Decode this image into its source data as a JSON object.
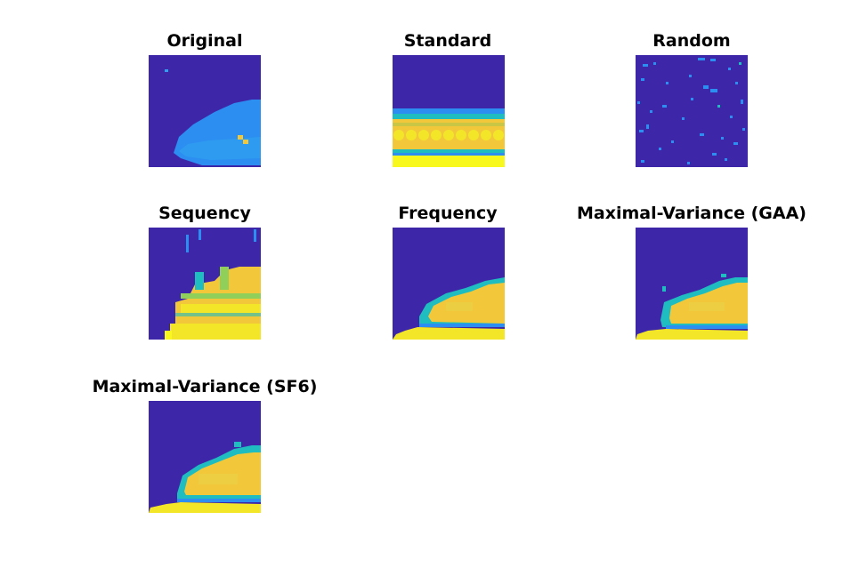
{
  "colors": {
    "background": "#3e26a8",
    "blue": "#2c8ef0",
    "light_blue": "#2f9ff0",
    "teal": "#1fbcc0",
    "green": "#8fcf5a",
    "yellow_orange": "#f2c83a",
    "yellow": "#f3e629",
    "bright_yellow": "#f9f81e"
  },
  "panels": [
    {
      "id": "original",
      "title": "Original"
    },
    {
      "id": "standard",
      "title": "Standard"
    },
    {
      "id": "random",
      "title": "Random"
    },
    {
      "id": "sequency",
      "title": "Sequency"
    },
    {
      "id": "frequency",
      "title": "Frequency"
    },
    {
      "id": "gaa",
      "title": "Maximal-Variance (GAA)"
    },
    {
      "id": "sf6",
      "title": "Maximal-Variance (SF6)"
    }
  ]
}
